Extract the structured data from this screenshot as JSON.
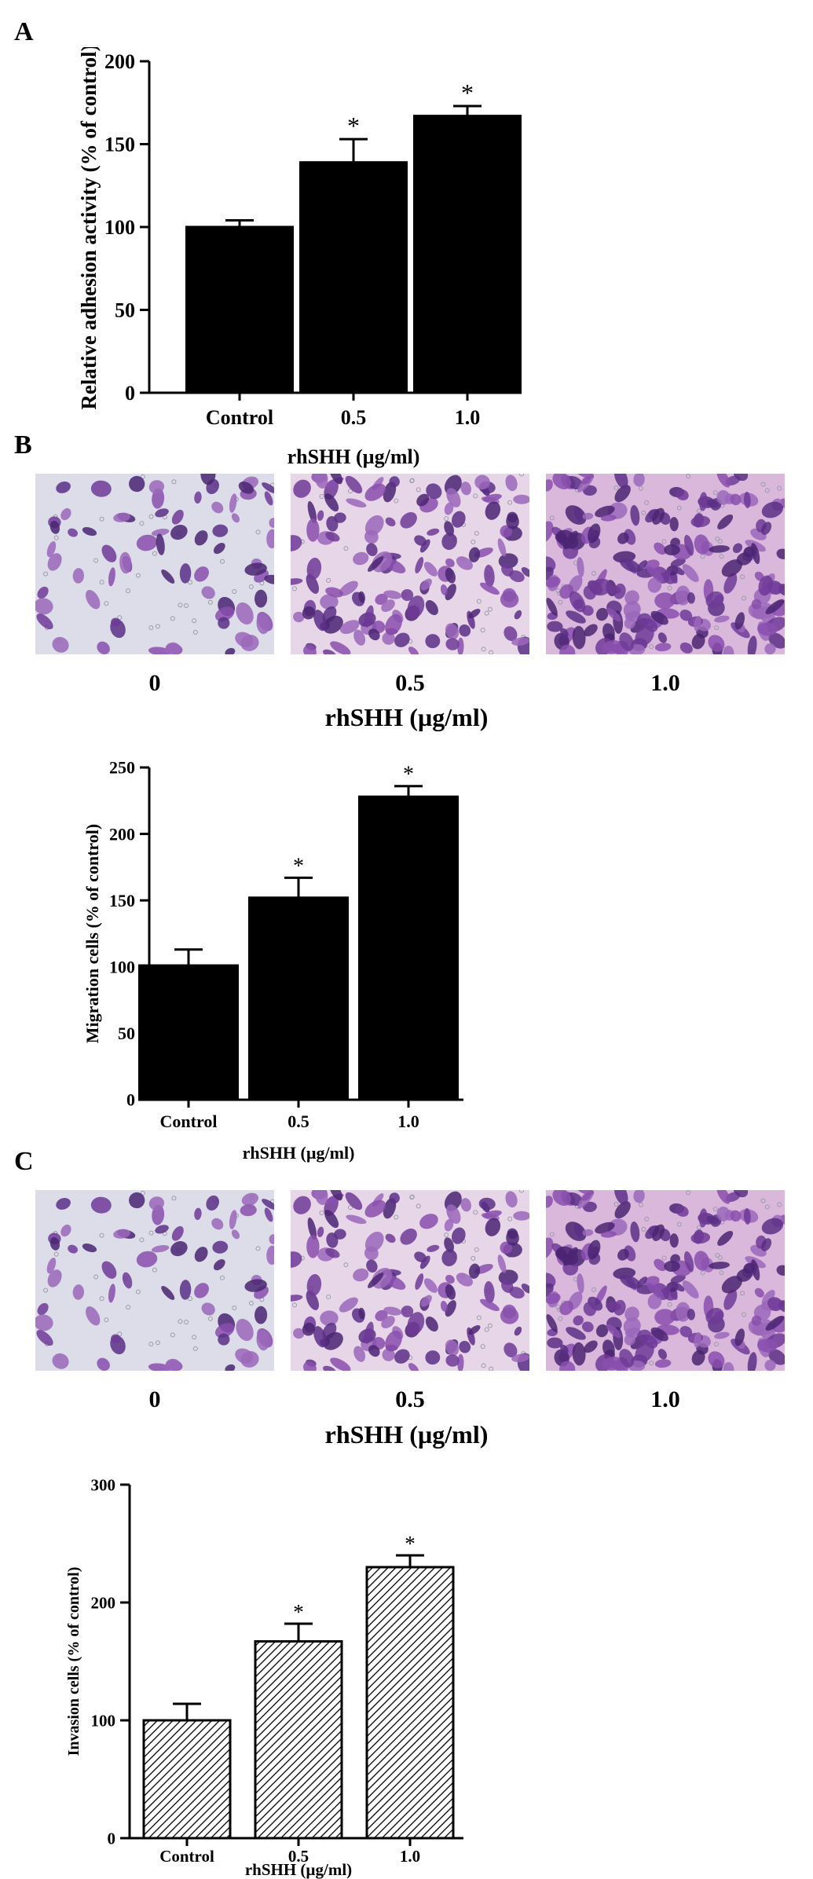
{
  "panels": {
    "a": "A",
    "b": "B",
    "c": "C"
  },
  "micrographs": {
    "b": {
      "labels": [
        "0",
        "0.5",
        "1.0"
      ],
      "axis_label": "rhSHH (µg/ml)",
      "densities": [
        70,
        130,
        190
      ]
    },
    "c": {
      "labels": [
        "0",
        "0.5",
        "1.0"
      ],
      "axis_label": "rhSHH (µg/ml)",
      "densities": [
        65,
        125,
        185
      ]
    }
  },
  "chart_data": [
    {
      "type": "bar",
      "categories": [
        "Control",
        "0.5",
        "1.0"
      ],
      "values": [
        100,
        139,
        167
      ],
      "errors": [
        4,
        14,
        6
      ],
      "significance": [
        "",
        "*",
        "*"
      ],
      "ylabel": "Relative adhesion activity (% of control)",
      "xlabel": "rhSHH (µg/ml)",
      "ylim": [
        0,
        200
      ],
      "yticks": [
        0,
        50,
        100,
        150,
        200
      ],
      "fill": "solid",
      "color": "#000000",
      "grid": false
    },
    {
      "type": "bar",
      "categories": [
        "Control",
        "0.5",
        "1.0"
      ],
      "values": [
        101,
        152,
        228
      ],
      "errors": [
        12,
        15,
        8
      ],
      "significance": [
        "",
        "*",
        "*"
      ],
      "ylabel": "Migration cells (% of control)",
      "xlabel": "rhSHH (µg/ml)",
      "ylim": [
        0,
        250
      ],
      "yticks": [
        0,
        50,
        100,
        150,
        200,
        250
      ],
      "fill": "solid",
      "color": "#000000",
      "grid": false
    },
    {
      "type": "bar",
      "categories": [
        "Control",
        "0.5",
        "1.0"
      ],
      "values": [
        100,
        167,
        230
      ],
      "errors": [
        14,
        15,
        10
      ],
      "significance": [
        "",
        "*",
        "*"
      ],
      "ylabel": "Invasion cells (% of control)",
      "xlabel": "rhSHH (µg/ml)",
      "ylim": [
        0,
        300
      ],
      "yticks": [
        0,
        100,
        200,
        300
      ],
      "fill": "hatched",
      "color": "#000000",
      "grid": false
    }
  ]
}
